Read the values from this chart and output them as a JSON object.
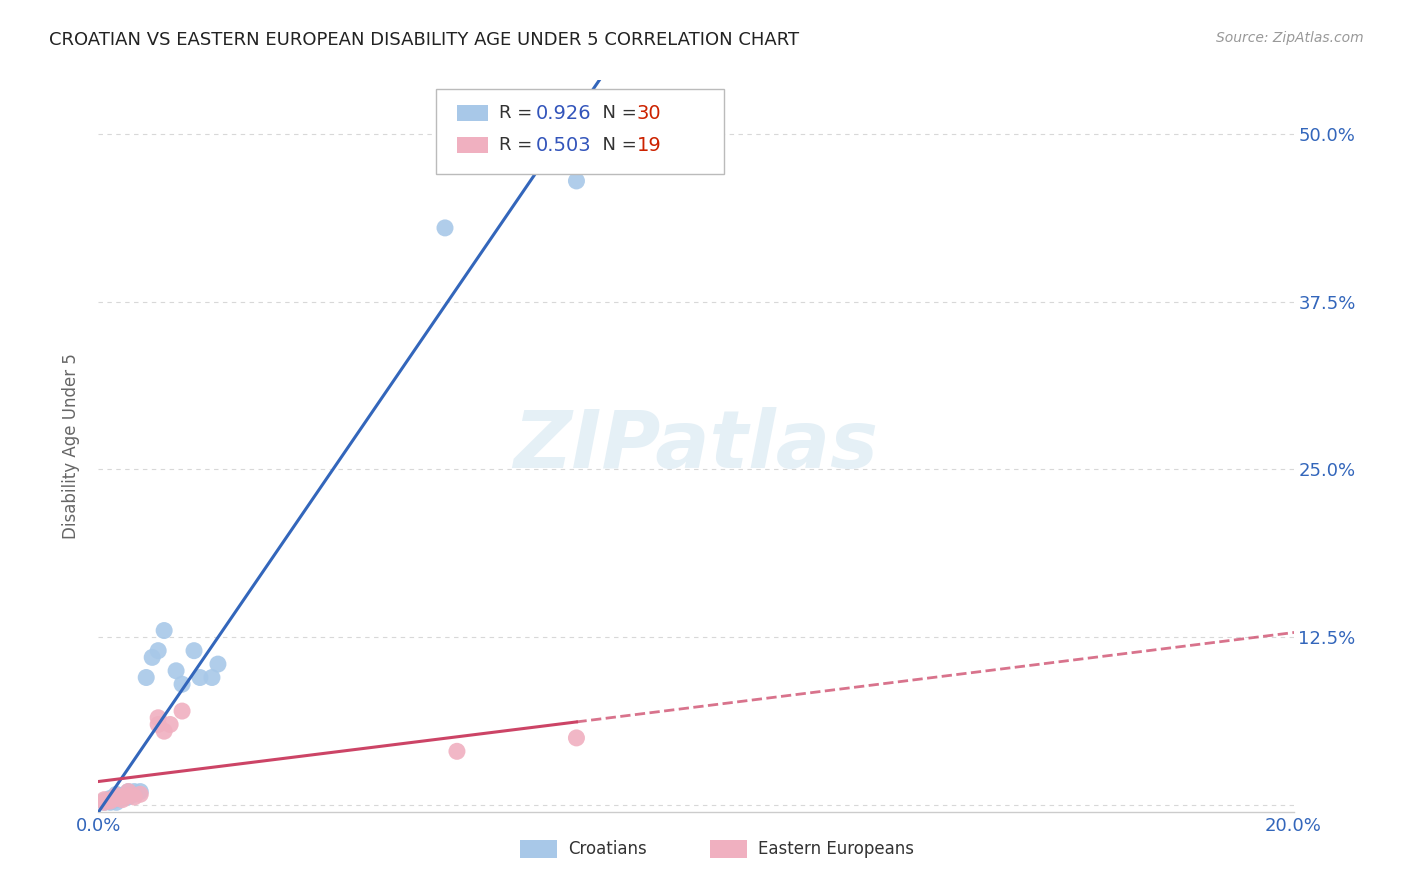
{
  "title": "CROATIAN VS EASTERN EUROPEAN DISABILITY AGE UNDER 5 CORRELATION CHART",
  "source": "Source: ZipAtlas.com",
  "ylabel": "Disability Age Under 5",
  "xlim": [
    0.0,
    0.2
  ],
  "ylim": [
    -0.005,
    0.54
  ],
  "yticks": [
    0.0,
    0.125,
    0.25,
    0.375,
    0.5
  ],
  "ytick_labels": [
    "",
    "12.5%",
    "25.0%",
    "37.5%",
    "50.0%"
  ],
  "xticks": [
    0.0,
    0.05,
    0.1,
    0.15,
    0.2
  ],
  "xtick_labels": [
    "0.0%",
    "",
    "",
    "",
    "20.0%"
  ],
  "grid_color": "#d8d8d8",
  "background_color": "#ffffff",
  "croatian_color": "#a8c8e8",
  "croatian_line_color": "#3366bb",
  "eastern_color": "#f0b0c0",
  "eastern_line_color": "#cc4466",
  "R_croatian": 0.926,
  "N_croatian": 30,
  "R_eastern": 0.503,
  "N_eastern": 19,
  "txt_dark": "#333333",
  "txt_blue": "#3355bb",
  "txt_red": "#cc2200",
  "croatians_label": "Croatians",
  "eastern_label": "Eastern Europeans",
  "watermark": "ZIPatlas",
  "croatian_x": [
    0.001,
    0.001,
    0.002,
    0.002,
    0.002,
    0.002,
    0.003,
    0.003,
    0.003,
    0.003,
    0.004,
    0.004,
    0.005,
    0.005,
    0.005,
    0.006,
    0.006,
    0.007,
    0.008,
    0.009,
    0.01,
    0.011,
    0.013,
    0.014,
    0.016,
    0.017,
    0.019,
    0.02,
    0.058,
    0.08
  ],
  "croatian_y": [
    0.002,
    0.003,
    0.002,
    0.003,
    0.004,
    0.005,
    0.002,
    0.004,
    0.006,
    0.008,
    0.005,
    0.007,
    0.006,
    0.008,
    0.01,
    0.008,
    0.01,
    0.01,
    0.095,
    0.11,
    0.115,
    0.13,
    0.1,
    0.09,
    0.115,
    0.095,
    0.095,
    0.105,
    0.43,
    0.465
  ],
  "eastern_x": [
    0.001,
    0.001,
    0.002,
    0.002,
    0.003,
    0.003,
    0.004,
    0.004,
    0.005,
    0.005,
    0.006,
    0.007,
    0.01,
    0.01,
    0.011,
    0.012,
    0.014,
    0.06,
    0.08
  ],
  "eastern_y": [
    0.002,
    0.004,
    0.003,
    0.004,
    0.005,
    0.007,
    0.004,
    0.006,
    0.007,
    0.01,
    0.006,
    0.008,
    0.06,
    0.065,
    0.055,
    0.06,
    0.07,
    0.04,
    0.05
  ]
}
